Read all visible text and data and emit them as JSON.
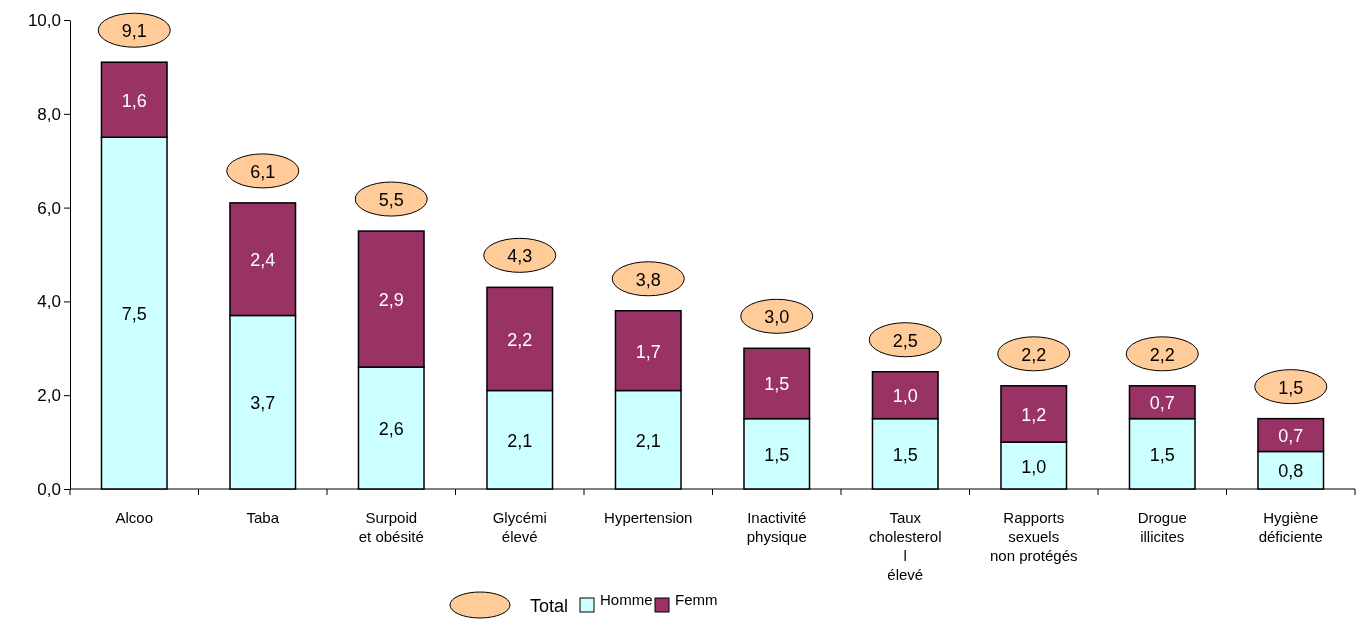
{
  "chart_data": {
    "type": "bar",
    "stacked": true,
    "categories": [
      "Alcoo",
      "Taba",
      "Surpoid\net obésité",
      "Glycémi\nélevé",
      "Hypertension",
      "Inactivité\nphysique",
      "Taux\ncholesterol\nl\n\nélevé",
      "Rapports\nsexuels\nnon protégés",
      "Drogue\nillicites",
      "Hygiène\ndéficiente"
    ],
    "series": [
      {
        "name": "Homme",
        "color": "#ccffff",
        "values": [
          7.5,
          3.7,
          2.6,
          2.1,
          2.1,
          1.5,
          1.5,
          1.0,
          1.5,
          0.8
        ],
        "value_labels": [
          "7,5",
          "3,7",
          "2,6",
          "2,1",
          "2,1",
          "1,5",
          "1,5",
          "1,0",
          "1,5",
          "0,8"
        ]
      },
      {
        "name": "Femm",
        "color": "#993366",
        "values": [
          1.6,
          2.4,
          2.9,
          2.2,
          1.7,
          1.5,
          1.0,
          1.2,
          0.7,
          0.7
        ],
        "value_labels": [
          "1,6",
          "2,4",
          "2,9",
          "2,2",
          "1,7",
          "1,5",
          "1,0",
          "1,2",
          "0,7",
          "0,7"
        ]
      }
    ],
    "totals": [
      "9,1",
      "6,1",
      "5,5",
      "4,3",
      "3,8",
      "3,0",
      "2,5",
      "2,2",
      "2,2",
      "1,5"
    ],
    "annotations": [
      "Total"
    ],
    "ylim": [
      0,
      10
    ],
    "yticks": [
      {
        "value": 0,
        "label": "0,0"
      },
      {
        "value": 2,
        "label": "2,0"
      },
      {
        "value": 4,
        "label": "4,0"
      },
      {
        "value": 6,
        "label": "6,0"
      },
      {
        "value": 8,
        "label": "8,0"
      },
      {
        "value": 10,
        "label": "10,0"
      }
    ],
    "grid": false,
    "legend": "bottom"
  }
}
